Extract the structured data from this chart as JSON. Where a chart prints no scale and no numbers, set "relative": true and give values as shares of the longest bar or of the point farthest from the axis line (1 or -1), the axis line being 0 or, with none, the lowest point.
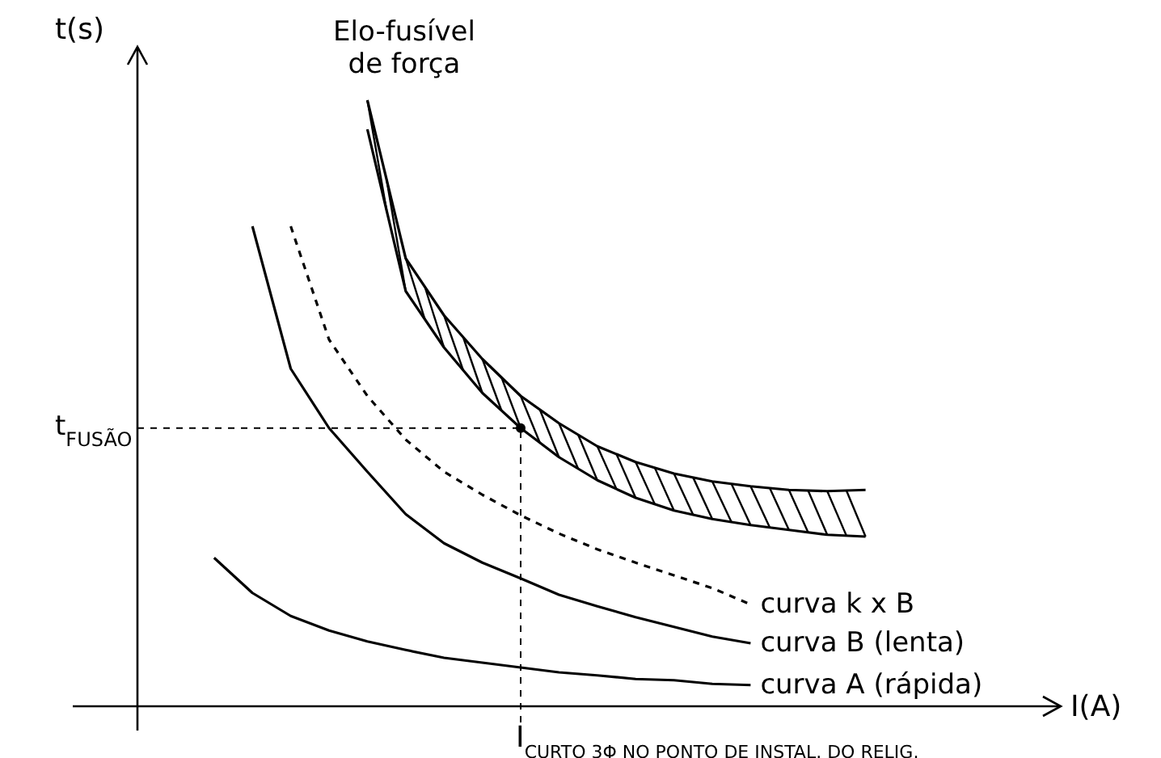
{
  "chart_data": {
    "type": "line",
    "relative": true,
    "ylabel": "t(s)",
    "categories": [
      null,
      null,
      null,
      null,
      null,
      null,
      null,
      null,
      null,
      null,
      null,
      null,
      null,
      null,
      null,
      null,
      null,
      null,
      null,
      null
    ],
    "series": [
      {
        "name": "curva k x B",
        "color": "#000000",
        "line_style": "dashed",
        "values": [
          null,
          null,
          null,
          null,
          0.792,
          0.605,
          0.512,
          0.44,
          0.387,
          0.349,
          0.315,
          0.285,
          0.259,
          0.237,
          0.216,
          0.195,
          0.168,
          null,
          null,
          null
        ]
      },
      {
        "name": "curva B (lenta)",
        "color": "#000000",
        "line_style": "solid",
        "values": [
          null,
          null,
          null,
          0.792,
          0.557,
          0.459,
          0.387,
          0.317,
          0.269,
          0.237,
          0.211,
          0.184,
          0.165,
          0.147,
          0.131,
          0.115,
          0.104,
          null,
          null,
          null
        ]
      },
      {
        "name": "curva A (rápida)",
        "color": "#000000",
        "line_style": "solid",
        "values": [
          null,
          null,
          0.245,
          0.187,
          0.149,
          0.125,
          0.107,
          0.093,
          0.08,
          0.072,
          0.064,
          0.056,
          0.051,
          0.045,
          0.043,
          0.037,
          0.035,
          null,
          null,
          null
        ]
      },
      {
        "color": "#000000",
        "line_style": "solid",
        "values": [
          null,
          null,
          null,
          null,
          null,
          null,
          1,
          0.739,
          0.645,
          0.573,
          0.512,
          0.467,
          0.429,
          0.403,
          0.384,
          0.371,
          0.363,
          0.357,
          0.355,
          0.357
        ]
      },
      {
        "color": "#000000",
        "line_style": "solid",
        "values": [
          null,
          null,
          null,
          null,
          null,
          null,
          0.952,
          0.685,
          0.592,
          0.517,
          0.459,
          0.411,
          0.373,
          0.344,
          0.323,
          0.309,
          0.299,
          0.291,
          0.283,
          0.28
        ]
      }
    ],
    "ref_lines": [
      {
        "axis": "y",
        "value": 0.459,
        "label": "t$_{FUSÃO}$",
        "line_style": "dashed"
      }
    ],
    "annotations": [
      "Elo-fusível de força",
      "I$_{CURTO 3Φ NO PONTO DE INSTAL. DO RELIG.}$",
      "I(A)"
    ]
  }
}
